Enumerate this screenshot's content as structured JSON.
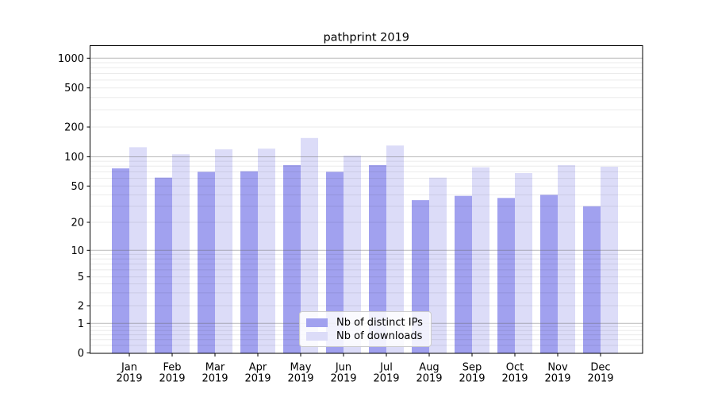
{
  "chart_data": {
    "type": "bar",
    "title": "pathprint 2019",
    "categories": [
      "Jan",
      "Feb",
      "Mar",
      "Apr",
      "May",
      "Jun",
      "Jul",
      "Aug",
      "Sep",
      "Oct",
      "Nov",
      "Dec"
    ],
    "category_year": "2019",
    "series": [
      {
        "name": "Nb of distinct IPs",
        "color": "#a1a1ef",
        "values": [
          76,
          61,
          70,
          71,
          82,
          70,
          82,
          35,
          39,
          37,
          40,
          30
        ]
      },
      {
        "name": "Nb of downloads",
        "color": "#dcdcf8",
        "values": [
          125,
          106,
          119,
          121,
          155,
          103,
          130,
          61,
          78,
          68,
          82,
          79
        ]
      }
    ],
    "yscale": "log-with-zero-baseline",
    "yticks": [
      1000,
      500,
      200,
      100,
      50,
      20,
      10,
      5,
      2,
      1,
      0
    ],
    "ylim": [
      0,
      1200
    ],
    "grid": "horizontal, log minors light + powers of ten darker",
    "legend_position": "lower center",
    "colors": {
      "major_grid": "#b0b0b0",
      "minor_grid": "#ececec",
      "axis": "#000000",
      "background": "#ffffff"
    }
  }
}
